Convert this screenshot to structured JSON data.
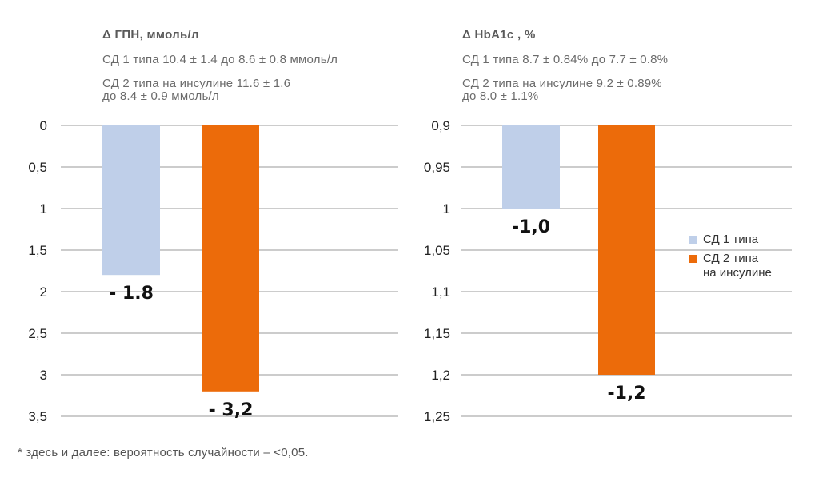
{
  "colors": {
    "series1": "#bfcfe9",
    "series2": "#ec6b0a",
    "grid": "#9a9a9a"
  },
  "legend": [
    {
      "label": "СД 1 типа",
      "color": "#bfcfe9"
    },
    {
      "label": "СД 2 типа\nна инсулине",
      "color": "#ec6b0a"
    }
  ],
  "footnote": "* здесь и далее: вероятность случайности – <0,05.",
  "chart_data": [
    {
      "type": "bar",
      "title": "Δ ГПН, ммоль/л",
      "subtitle_lines": [
        "СД 1 типа 10.4 ± 1.4 до 8.6 ± 0.8 ммоль/л",
        "СД 2 типа на инсулине  11.6 ± 1.6",
        "до 8.4 ± 0.9 ммоль/л"
      ],
      "y_ticks": [
        "0",
        "0,5",
        "1",
        "1,5",
        "2",
        "2,5",
        "3",
        "3,5"
      ],
      "ylim": [
        0,
        3.5
      ],
      "y_inverted": true,
      "series": [
        {
          "name": "СД 1 типа",
          "value": 1.8,
          "label": "- 1.8"
        },
        {
          "name": "СД 2 типа на инсулине",
          "value": 3.2,
          "label": "- 3,2"
        }
      ]
    },
    {
      "type": "bar",
      "title": "Δ HbA1c , %",
      "subtitle_lines": [
        "СД 1 типа 8.7 ± 0.84% до 7.7 ± 0.8%",
        "СД 2 типа на инсулине 9.2 ± 0.89%",
        "до 8.0 ± 1.1%"
      ],
      "y_ticks": [
        "0,9",
        "0,95",
        "1",
        "1,05",
        "1,1",
        "1,15",
        "1,2",
        "1,25"
      ],
      "ylim": [
        0.9,
        1.25
      ],
      "y_inverted": true,
      "series": [
        {
          "name": "СД 1 типа",
          "value": 1.0,
          "label": "-1,0"
        },
        {
          "name": "СД 2 типа на инсулине",
          "value": 1.2,
          "label": "-1,2"
        }
      ]
    }
  ]
}
